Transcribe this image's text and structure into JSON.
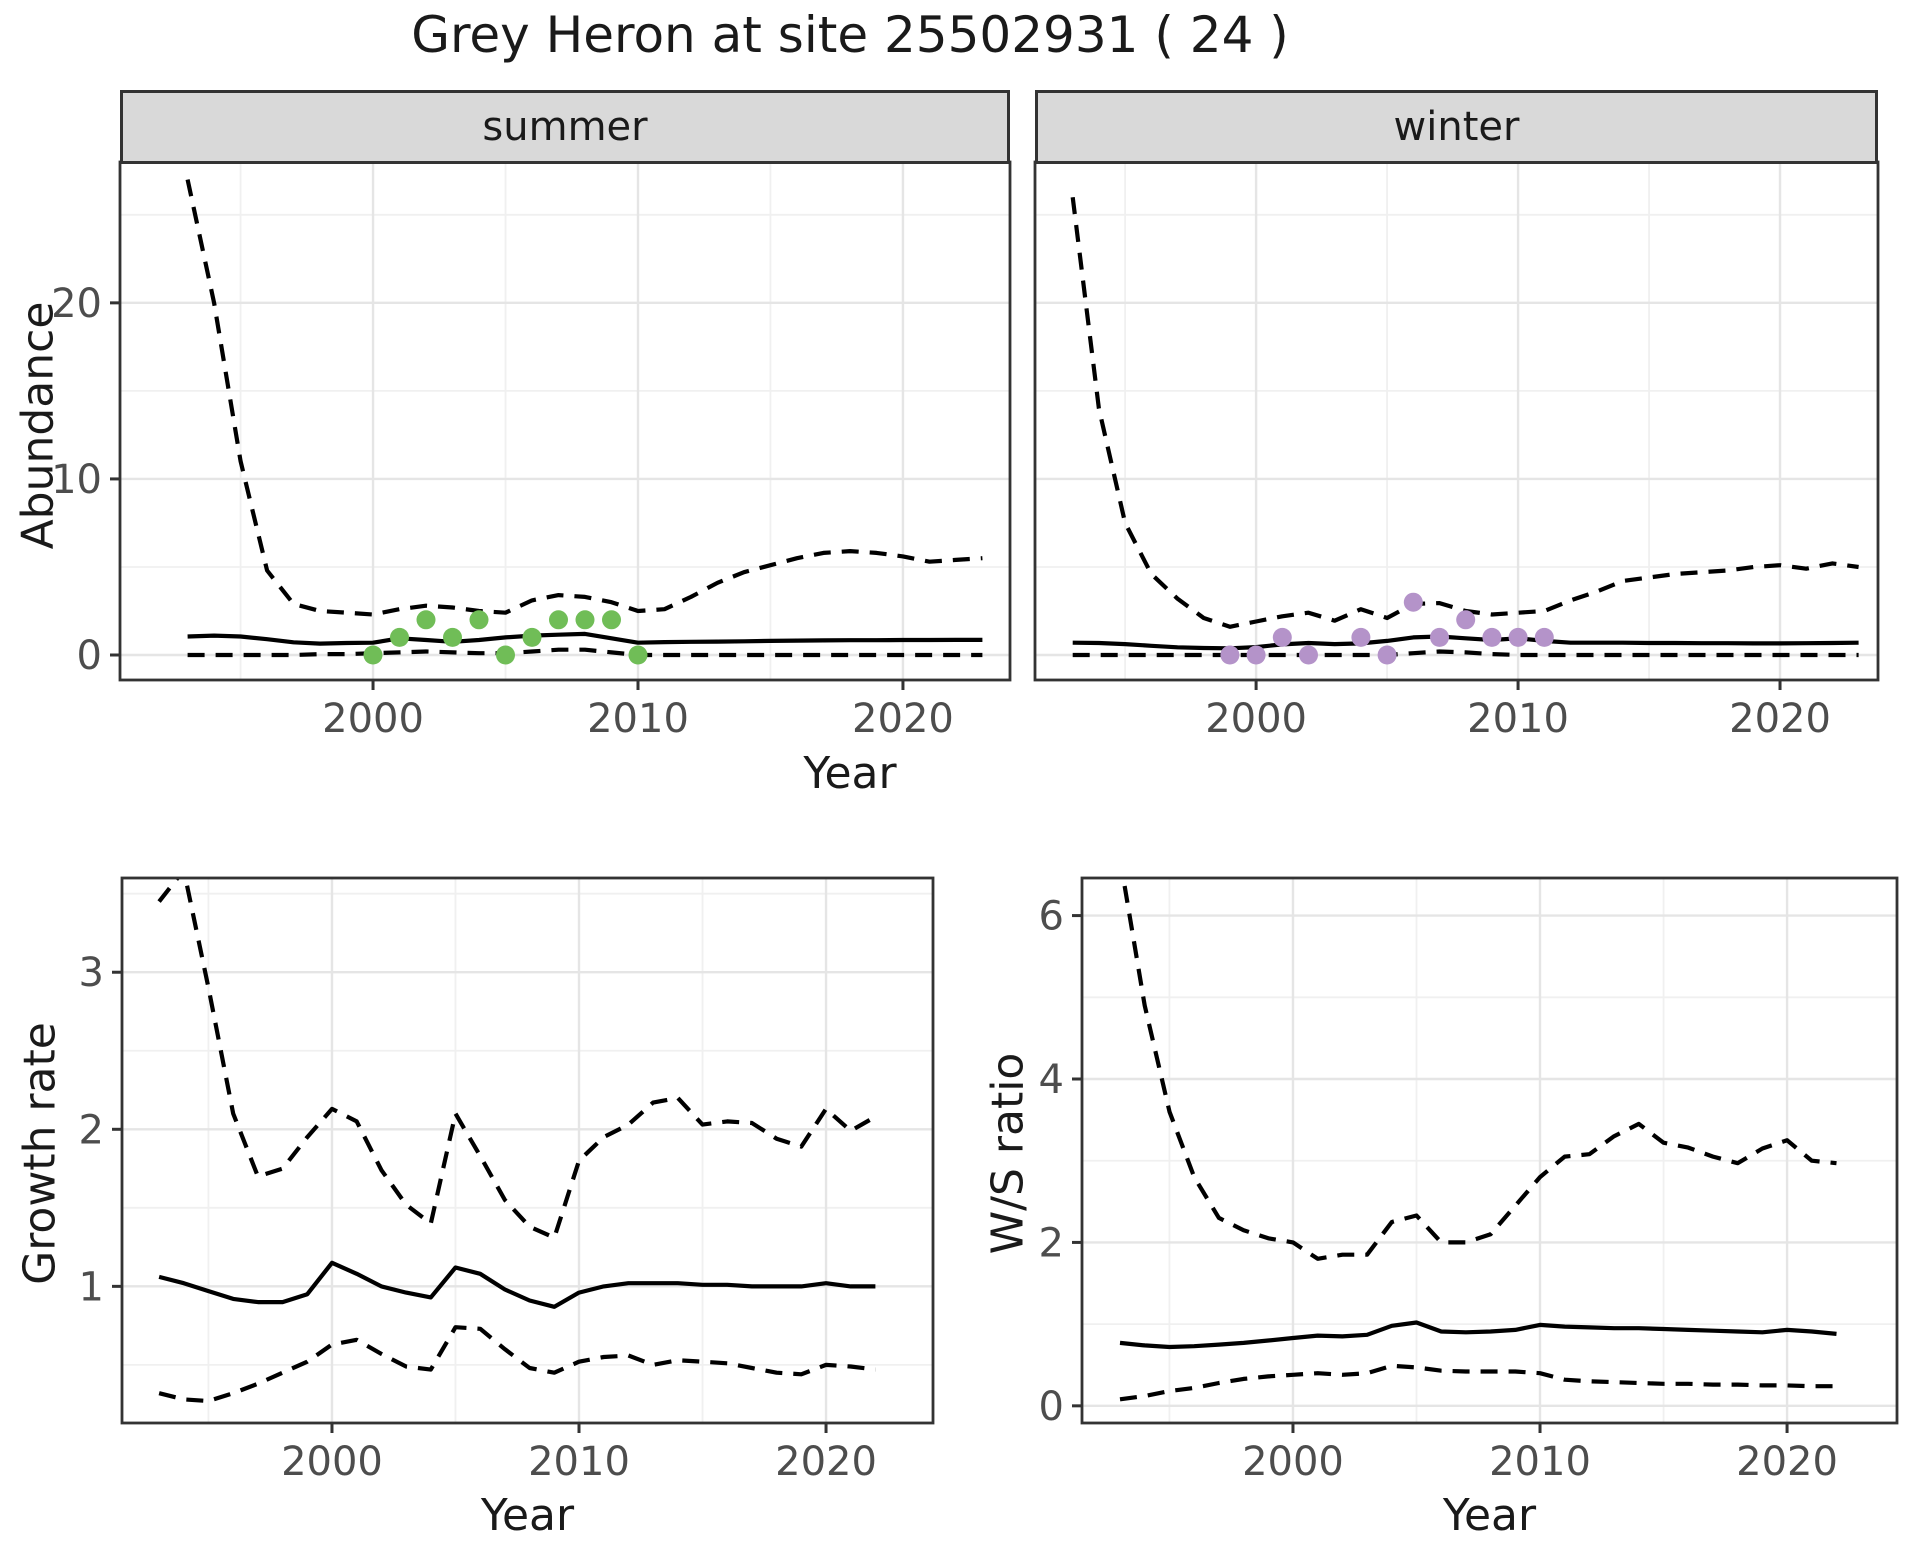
{
  "title": "Grey Heron at site 25502931 ( 24 )",
  "facets": {
    "summer": "summer",
    "winter": "winter"
  },
  "axis_titles": {
    "abundance": "Abundance",
    "year": "Year",
    "growth_rate": "Growth rate",
    "ws_ratio": "W/S ratio"
  },
  "colors": {
    "summer_points": "#70bd57",
    "winter_points": "#b493c9",
    "line": "#000000",
    "border": "#333333",
    "strip_bg": "#d9d9d9",
    "grid_major": "#e5e5e5",
    "grid_minor": "#f0f0f0",
    "tick_label": "#4d4d4d",
    "tick_mark": "#333333"
  },
  "chart_data": [
    {
      "id": "abundance_summer",
      "type": "line",
      "facet": "summer",
      "xlabel": "Year",
      "ylabel": "Abundance",
      "xlim": [
        1990.45,
        2024.04
      ],
      "ylim": [
        -1.42,
        28.0
      ],
      "xticks": [
        2000,
        2010,
        2020
      ],
      "xticks_minor": [
        1995,
        2005,
        2015
      ],
      "yticks": [
        0,
        10,
        20
      ],
      "yticks_minor": [
        5,
        15,
        25
      ],
      "y_axis_labels_shown": true,
      "series": [
        {
          "name": "upper-ci",
          "style": "dashed",
          "x": [
            1993,
            1994,
            1995,
            1996,
            1997,
            1998,
            1999,
            2000,
            2001,
            2002,
            2003,
            2004,
            2005,
            2006,
            2007,
            2008,
            2009,
            2010,
            2011,
            2012,
            2013,
            2014,
            2015,
            2016,
            2017,
            2018,
            2019,
            2020,
            2021,
            2022,
            2023
          ],
          "y": [
            27,
            20,
            11,
            4.8,
            2.9,
            2.5,
            2.4,
            2.3,
            2.6,
            2.8,
            2.7,
            2.5,
            2.4,
            3.1,
            3.4,
            3.3,
            3.0,
            2.5,
            2.6,
            3.3,
            4.1,
            4.7,
            5.1,
            5.5,
            5.8,
            5.9,
            5.8,
            5.6,
            5.3,
            5.4,
            5.5
          ]
        },
        {
          "name": "median",
          "style": "solid",
          "x": [
            1993,
            1994,
            1995,
            1996,
            1997,
            1998,
            1999,
            2000,
            2001,
            2002,
            2003,
            2004,
            2005,
            2006,
            2007,
            2008,
            2009,
            2010,
            2011,
            2012,
            2013,
            2014,
            2015,
            2016,
            2017,
            2018,
            2019,
            2020,
            2021,
            2022,
            2023
          ],
          "y": [
            1.05,
            1.1,
            1.05,
            0.9,
            0.72,
            0.65,
            0.68,
            0.7,
            0.95,
            0.85,
            0.75,
            0.85,
            1.0,
            1.1,
            1.15,
            1.2,
            0.95,
            0.7,
            0.73,
            0.75,
            0.76,
            0.78,
            0.8,
            0.82,
            0.83,
            0.84,
            0.84,
            0.85,
            0.85,
            0.86,
            0.86
          ]
        },
        {
          "name": "lower-ci",
          "style": "dashed",
          "x": [
            1993,
            1994,
            1995,
            1996,
            1997,
            1998,
            1999,
            2000,
            2001,
            2002,
            2003,
            2004,
            2005,
            2006,
            2007,
            2008,
            2009,
            2010,
            2011,
            2012,
            2013,
            2014,
            2015,
            2016,
            2017,
            2018,
            2019,
            2020,
            2021,
            2022,
            2023
          ],
          "y": [
            0,
            0,
            0,
            0,
            0,
            0.05,
            0.05,
            0.1,
            0.15,
            0.2,
            0.15,
            0.1,
            0.1,
            0.2,
            0.3,
            0.3,
            0.15,
            0,
            0,
            0,
            0,
            0,
            0,
            0,
            0,
            0,
            0,
            0,
            0,
            0,
            0
          ]
        },
        {
          "name": "observed-counts",
          "style": "points",
          "color_key": "summer_points",
          "x": [
            2000,
            2001,
            2002,
            2003,
            2004,
            2005,
            2006,
            2007,
            2008,
            2009,
            2010
          ],
          "y": [
            0,
            1,
            2,
            1,
            2,
            0,
            1,
            2,
            2,
            2,
            0
          ]
        }
      ]
    },
    {
      "id": "abundance_winter",
      "type": "line",
      "facet": "winter",
      "xlabel": "Year",
      "ylabel": "Abundance",
      "xlim": [
        1991.56,
        2023.74
      ],
      "ylim": [
        -1.42,
        28.0
      ],
      "xticks": [
        2000,
        2010,
        2020
      ],
      "xticks_minor": [
        1995,
        2005,
        2015
      ],
      "yticks": [
        0,
        10,
        20
      ],
      "yticks_minor": [
        5,
        15,
        25
      ],
      "y_axis_labels_shown": false,
      "series": [
        {
          "name": "upper-ci",
          "style": "dashed",
          "x": [
            1993,
            1994,
            1995,
            1996,
            1997,
            1998,
            1999,
            2000,
            2001,
            2002,
            2003,
            2004,
            2005,
            2006,
            2007,
            2008,
            2009,
            2010,
            2011,
            2012,
            2013,
            2014,
            2015,
            2016,
            2017,
            2018,
            2019,
            2020,
            2021,
            2022,
            2023
          ],
          "y": [
            26,
            14,
            7.5,
            4.6,
            3.2,
            2.1,
            1.6,
            1.9,
            2.2,
            2.4,
            1.95,
            2.6,
            2.1,
            2.9,
            2.95,
            2.5,
            2.3,
            2.4,
            2.5,
            3.1,
            3.6,
            4.2,
            4.4,
            4.6,
            4.7,
            4.8,
            5.0,
            5.1,
            4.9,
            5.2,
            5.0
          ]
        },
        {
          "name": "median",
          "style": "solid",
          "x": [
            1993,
            1994,
            1995,
            1996,
            1997,
            1998,
            1999,
            2000,
            2001,
            2002,
            2003,
            2004,
            2005,
            2006,
            2007,
            2008,
            2009,
            2010,
            2011,
            2012,
            2013,
            2014,
            2015,
            2016,
            2017,
            2018,
            2019,
            2020,
            2021,
            2022,
            2023
          ],
          "y": [
            0.7,
            0.68,
            0.62,
            0.52,
            0.44,
            0.4,
            0.38,
            0.45,
            0.6,
            0.68,
            0.62,
            0.66,
            0.8,
            1.0,
            1.05,
            0.95,
            0.85,
            0.95,
            0.8,
            0.7,
            0.7,
            0.7,
            0.68,
            0.68,
            0.67,
            0.67,
            0.66,
            0.66,
            0.67,
            0.68,
            0.7
          ]
        },
        {
          "name": "lower-ci",
          "style": "dashed",
          "x": [
            1993,
            1994,
            1995,
            1996,
            1997,
            1998,
            1999,
            2000,
            2001,
            2002,
            2003,
            2004,
            2005,
            2006,
            2007,
            2008,
            2009,
            2010,
            2011,
            2012,
            2013,
            2014,
            2015,
            2016,
            2017,
            2018,
            2019,
            2020,
            2021,
            2022,
            2023
          ],
          "y": [
            0,
            0,
            0,
            0,
            0,
            0,
            0,
            0,
            0,
            0,
            0,
            0,
            0,
            0.1,
            0.2,
            0.15,
            0.05,
            0,
            0,
            0,
            0,
            0,
            0,
            0,
            0,
            0,
            0,
            0,
            0,
            0,
            0
          ]
        },
        {
          "name": "observed-counts",
          "style": "points",
          "color_key": "winter_points",
          "x": [
            1999,
            2000,
            2001,
            2002,
            2004,
            2005,
            2006,
            2007,
            2008,
            2009,
            2010,
            2011
          ],
          "y": [
            0,
            0,
            1,
            0,
            1,
            0,
            3,
            1,
            2,
            1,
            1,
            1
          ]
        }
      ]
    },
    {
      "id": "growth_rate",
      "type": "line",
      "xlabel": "Year",
      "ylabel": "Growth rate",
      "xlim": [
        1991.5,
        2024.33
      ],
      "ylim": [
        0.13,
        3.6
      ],
      "xticks": [
        2000,
        2010,
        2020
      ],
      "xticks_minor": [
        1995,
        2005,
        2015
      ],
      "yticks": [
        1,
        2,
        3
      ],
      "yticks_minor": [
        0.5,
        1.5,
        2.5,
        3.5
      ],
      "y_axis_labels_shown": true,
      "series": [
        {
          "name": "upper-ci",
          "style": "dashed",
          "x": [
            1993,
            1994,
            1995,
            1996,
            1997,
            1998,
            1999,
            2000,
            2001,
            2002,
            2003,
            2004,
            2005,
            2006,
            2007,
            2008,
            2009,
            2010,
            2011,
            2012,
            2013,
            2014,
            2015,
            2016,
            2017,
            2018,
            2019,
            2020,
            2021,
            2022
          ],
          "y": [
            3.45,
            3.65,
            2.9,
            2.1,
            1.7,
            1.75,
            1.95,
            2.13,
            2.05,
            1.74,
            1.52,
            1.4,
            2.1,
            1.83,
            1.55,
            1.38,
            1.31,
            1.8,
            1.95,
            2.03,
            2.17,
            2.2,
            2.03,
            2.05,
            2.04,
            1.94,
            1.89,
            2.13,
            1.99,
            2.08
          ]
        },
        {
          "name": "median",
          "style": "solid",
          "x": [
            1993,
            1994,
            1995,
            1996,
            1997,
            1998,
            1999,
            2000,
            2001,
            2002,
            2003,
            2004,
            2005,
            2006,
            2007,
            2008,
            2009,
            2010,
            2011,
            2012,
            2013,
            2014,
            2015,
            2016,
            2017,
            2018,
            2019,
            2020,
            2021,
            2022
          ],
          "y": [
            1.06,
            1.02,
            0.97,
            0.92,
            0.9,
            0.9,
            0.95,
            1.15,
            1.08,
            1.0,
            0.96,
            0.93,
            1.12,
            1.08,
            0.98,
            0.91,
            0.87,
            0.96,
            1.0,
            1.02,
            1.02,
            1.02,
            1.01,
            1.01,
            1.0,
            1.0,
            1.0,
            1.02,
            1.0,
            1.0
          ]
        },
        {
          "name": "lower-ci",
          "style": "dashed",
          "x": [
            1993,
            1994,
            1995,
            1996,
            1997,
            1998,
            1999,
            2000,
            2001,
            2002,
            2003,
            2004,
            2005,
            2006,
            2007,
            2008,
            2009,
            2010,
            2011,
            2012,
            2013,
            2014,
            2015,
            2016,
            2017,
            2018,
            2019,
            2020,
            2021,
            2022
          ],
          "y": [
            0.32,
            0.28,
            0.27,
            0.32,
            0.38,
            0.45,
            0.52,
            0.63,
            0.66,
            0.57,
            0.49,
            0.47,
            0.74,
            0.73,
            0.6,
            0.48,
            0.45,
            0.52,
            0.55,
            0.56,
            0.5,
            0.53,
            0.52,
            0.51,
            0.48,
            0.45,
            0.44,
            0.5,
            0.49,
            0.47
          ]
        }
      ]
    },
    {
      "id": "ws_ratio",
      "type": "line",
      "xlabel": "Year",
      "ylabel": "W/S ratio",
      "xlim": [
        1991.46,
        2024.45
      ],
      "ylim": [
        -0.21,
        6.46
      ],
      "xticks": [
        2000,
        2010,
        2020
      ],
      "xticks_minor": [
        1995,
        2005,
        2015
      ],
      "yticks": [
        0,
        2,
        4,
        6
      ],
      "yticks_minor": [
        1,
        3,
        5
      ],
      "y_axis_labels_shown": true,
      "series": [
        {
          "name": "upper-ci",
          "style": "dashed",
          "x": [
            1993,
            1994,
            1995,
            1996,
            1997,
            1998,
            1999,
            2000,
            2001,
            2002,
            2003,
            2004,
            2005,
            2006,
            2007,
            2008,
            2009,
            2010,
            2011,
            2012,
            2013,
            2014,
            2015,
            2016,
            2017,
            2018,
            2019,
            2020,
            2021,
            2022
          ],
          "y": [
            6.7,
            4.9,
            3.6,
            2.8,
            2.3,
            2.15,
            2.05,
            2.0,
            1.8,
            1.85,
            1.85,
            2.25,
            2.33,
            2.0,
            2.0,
            2.1,
            2.45,
            2.8,
            3.05,
            3.08,
            3.3,
            3.45,
            3.22,
            3.16,
            3.05,
            2.97,
            3.15,
            3.25,
            3.0,
            2.97
          ]
        },
        {
          "name": "median",
          "style": "solid",
          "x": [
            1993,
            1994,
            1995,
            1996,
            1997,
            1998,
            1999,
            2000,
            2001,
            2002,
            2003,
            2004,
            2005,
            2006,
            2007,
            2008,
            2009,
            2010,
            2011,
            2012,
            2013,
            2014,
            2015,
            2016,
            2017,
            2018,
            2019,
            2020,
            2021,
            2022
          ],
          "y": [
            0.77,
            0.74,
            0.72,
            0.73,
            0.75,
            0.77,
            0.8,
            0.83,
            0.86,
            0.85,
            0.87,
            0.98,
            1.02,
            0.91,
            0.9,
            0.91,
            0.93,
            0.99,
            0.97,
            0.96,
            0.95,
            0.95,
            0.94,
            0.93,
            0.92,
            0.91,
            0.9,
            0.93,
            0.91,
            0.88
          ]
        },
        {
          "name": "lower-ci",
          "style": "dashed",
          "x": [
            1993,
            1994,
            1995,
            1996,
            1997,
            1998,
            1999,
            2000,
            2001,
            2002,
            2003,
            2004,
            2005,
            2006,
            2007,
            2008,
            2009,
            2010,
            2011,
            2012,
            2013,
            2014,
            2015,
            2016,
            2017,
            2018,
            2019,
            2020,
            2021,
            2022
          ],
          "y": [
            0.08,
            0.12,
            0.18,
            0.22,
            0.28,
            0.33,
            0.36,
            0.38,
            0.4,
            0.38,
            0.4,
            0.49,
            0.47,
            0.43,
            0.42,
            0.42,
            0.42,
            0.4,
            0.32,
            0.3,
            0.29,
            0.28,
            0.27,
            0.27,
            0.26,
            0.26,
            0.25,
            0.25,
            0.24,
            0.24
          ]
        }
      ]
    }
  ]
}
